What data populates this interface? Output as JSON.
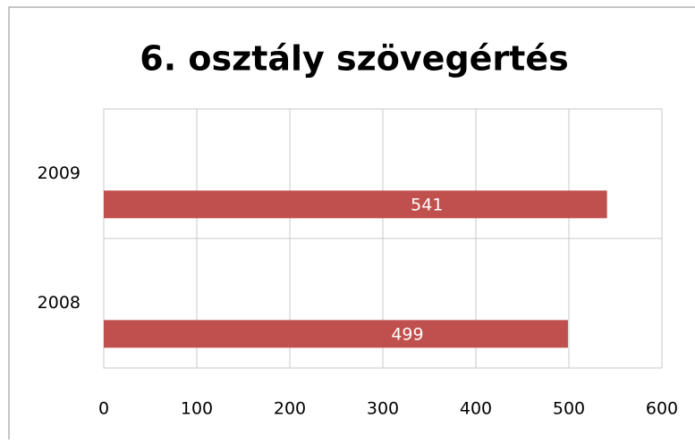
{
  "chart_data": {
    "type": "bar",
    "orientation": "horizontal",
    "title": "6. osztály szövegértés",
    "categories": [
      "2009",
      "2008"
    ],
    "values": [
      541,
      499
    ],
    "color": "#c0504d",
    "xlim": [
      0,
      600
    ],
    "xticks": [
      0,
      100,
      200,
      300,
      400,
      500,
      600
    ],
    "grid": true
  }
}
